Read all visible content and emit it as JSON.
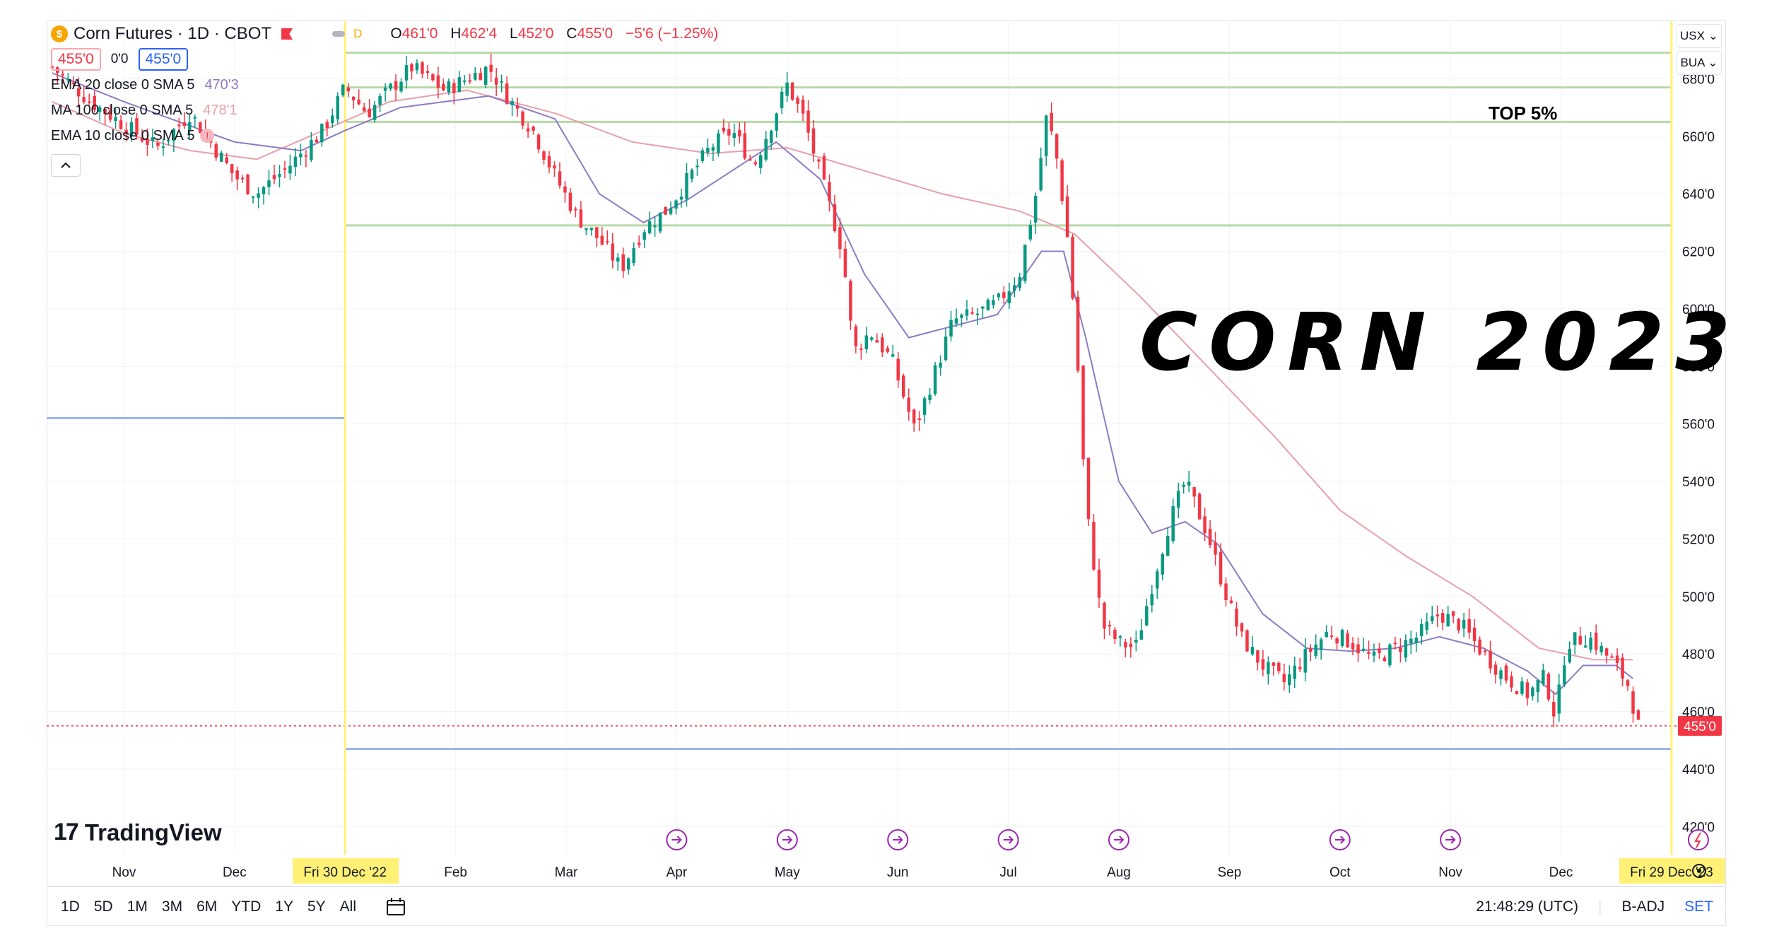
{
  "header": {
    "symbol_icon": "dollar-coin-icon",
    "title": "Corn Futures · 1D · CBOT",
    "d_badge": "D",
    "ohlc": [
      {
        "k": "O",
        "v": "461'0"
      },
      {
        "k": "H",
        "v": "462'4"
      },
      {
        "k": "L",
        "v": "452'0"
      },
      {
        "k": "C",
        "v": "455'0"
      }
    ],
    "change": "−5'6 (−1.25%)",
    "sell_price": "455'0",
    "spread": "0'0",
    "buy_price": "455'0"
  },
  "indicators": [
    {
      "label": "EMA 20 close 0 SMA 5",
      "value": "470'3",
      "color": "#8e7cc3"
    },
    {
      "label": "MA 100 close 0 SMA 5",
      "value": "478'1",
      "color": "#e8a0ab"
    },
    {
      "label": "EMA 10 close 0 SMA 5",
      "value": "",
      "color": "#ffffff"
    }
  ],
  "top_right": {
    "currency": "USX ⌄",
    "unit": "BUA ⌄"
  },
  "annotations": {
    "big_title": "CORN 2023",
    "top_label": "TOP 5%"
  },
  "logo_text": "TradingView",
  "bottom": {
    "ranges": [
      "1D",
      "5D",
      "1M",
      "3M",
      "6M",
      "YTD",
      "1Y",
      "5Y",
      "All"
    ],
    "time": "21:48:29 (UTC)",
    "adj": "B-ADJ",
    "set": "SET"
  },
  "colors": {
    "up": "#089981",
    "down": "#f23645",
    "ema20": "#8e7cc3",
    "ma100": "#e8a0ab",
    "zone": "#b7d9a8",
    "blue_line": "#9bb6f0",
    "marker": "#fff176"
  },
  "chart_data": {
    "type": "candlestick",
    "y_axis": {
      "range": [
        410,
        700
      ],
      "ticks": [
        "680'0",
        "660'0",
        "640'0",
        "620'0",
        "600'0",
        "580'0",
        "560'0",
        "540'0",
        "520'0",
        "500'0",
        "480'0",
        "460'0",
        "440'0",
        "420'0"
      ],
      "tick_values": [
        680,
        660,
        640,
        620,
        600,
        580,
        560,
        540,
        520,
        500,
        480,
        460,
        440,
        420
      ]
    },
    "x_axis": {
      "labels": [
        "Nov",
        "Dec",
        "Feb",
        "Mar",
        "Apr",
        "May",
        "Jun",
        "Jul",
        "Aug",
        "Sep",
        "Oct",
        "Nov",
        "Dec"
      ],
      "label_months": [
        1,
        2,
        4,
        5,
        6,
        7,
        8,
        9,
        10,
        11,
        12,
        13,
        14
      ],
      "range_months": [
        0.3,
        14.7
      ],
      "start_marker": {
        "label": "Fri 30 Dec '22",
        "month": 3
      },
      "end_marker": {
        "label": "Fri 29 Dec '23",
        "month": 15
      }
    },
    "last_price": {
      "label": "455'0",
      "value": 455
    },
    "horizontal_lines": [
      {
        "value": 689,
        "kind": "zone"
      },
      {
        "value": 677,
        "kind": "zone"
      },
      {
        "value": 665,
        "kind": "zone"
      },
      {
        "value": 629,
        "kind": "zone"
      },
      {
        "value": 562,
        "kind": "blue",
        "end": "start_marker"
      },
      {
        "value": 447,
        "kind": "blue",
        "start": "start_marker"
      }
    ],
    "events_months": [
      6,
      7,
      8,
      9,
      10,
      12,
      13
    ],
    "events_icon": "dividend-arrow-icon",
    "events_last_icon": "flash-icon",
    "price_path": [
      [
        0.35,
        684
      ],
      [
        0.7,
        672
      ],
      [
        1.0,
        664
      ],
      [
        1.3,
        656
      ],
      [
        1.6,
        668
      ],
      [
        2.0,
        646
      ],
      [
        2.2,
        640
      ],
      [
        2.5,
        650
      ],
      [
        2.8,
        662
      ],
      [
        3.0,
        677
      ],
      [
        3.2,
        668
      ],
      [
        3.4,
        676
      ],
      [
        3.6,
        684
      ],
      [
        3.9,
        676
      ],
      [
        4.1,
        680
      ],
      [
        4.3,
        684
      ],
      [
        4.5,
        672
      ],
      [
        4.7,
        662
      ],
      [
        4.9,
        646
      ],
      [
        5.1,
        632
      ],
      [
        5.3,
        624
      ],
      [
        5.5,
        614
      ],
      [
        5.7,
        628
      ],
      [
        5.9,
        634
      ],
      [
        6.1,
        645
      ],
      [
        6.3,
        656
      ],
      [
        6.5,
        662
      ],
      [
        6.7,
        650
      ],
      [
        6.85,
        664
      ],
      [
        7.0,
        678
      ],
      [
        7.15,
        666
      ],
      [
        7.35,
        640
      ],
      [
        7.5,
        620
      ],
      [
        7.6,
        585
      ],
      [
        7.75,
        592
      ],
      [
        7.95,
        582
      ],
      [
        8.15,
        558
      ],
      [
        8.3,
        574
      ],
      [
        8.5,
        596
      ],
      [
        8.7,
        598
      ],
      [
        8.9,
        602
      ],
      [
        9.1,
        612
      ],
      [
        9.25,
        640
      ],
      [
        9.35,
        668
      ],
      [
        9.45,
        650
      ],
      [
        9.55,
        620
      ],
      [
        9.62,
        585
      ],
      [
        9.7,
        532
      ],
      [
        9.85,
        490
      ],
      [
        10.0,
        484
      ],
      [
        10.15,
        482
      ],
      [
        10.3,
        504
      ],
      [
        10.45,
        525
      ],
      [
        10.6,
        540
      ],
      [
        10.8,
        522
      ],
      [
        10.95,
        503
      ],
      [
        11.1,
        486
      ],
      [
        11.3,
        476
      ],
      [
        11.5,
        470
      ],
      [
        11.7,
        480
      ],
      [
        11.9,
        488
      ],
      [
        12.1,
        484
      ],
      [
        12.3,
        478
      ],
      [
        12.5,
        482
      ],
      [
        12.7,
        486
      ],
      [
        12.9,
        494
      ],
      [
        13.1,
        490
      ],
      [
        13.3,
        480
      ],
      [
        13.5,
        472
      ],
      [
        13.7,
        466
      ],
      [
        13.85,
        472
      ],
      [
        13.95,
        458
      ],
      [
        14.05,
        484
      ],
      [
        14.25,
        486
      ],
      [
        14.45,
        478
      ],
      [
        14.6,
        470
      ],
      [
        14.7,
        455
      ]
    ],
    "ema20_path": [
      [
        0.35,
        682
      ],
      [
        1.0,
        672
      ],
      [
        2.0,
        658
      ],
      [
        2.6,
        655
      ],
      [
        3.0,
        662
      ],
      [
        3.5,
        670
      ],
      [
        4.3,
        674
      ],
      [
        4.9,
        666
      ],
      [
        5.3,
        640
      ],
      [
        5.7,
        630
      ],
      [
        6.1,
        638
      ],
      [
        6.5,
        648
      ],
      [
        6.9,
        658
      ],
      [
        7.3,
        645
      ],
      [
        7.7,
        612
      ],
      [
        8.1,
        590
      ],
      [
        8.5,
        594
      ],
      [
        8.9,
        598
      ],
      [
        9.3,
        620
      ],
      [
        9.5,
        620
      ],
      [
        9.7,
        590
      ],
      [
        10.0,
        540
      ],
      [
        10.3,
        522
      ],
      [
        10.6,
        526
      ],
      [
        10.9,
        518
      ],
      [
        11.3,
        494
      ],
      [
        11.7,
        482
      ],
      [
        12.1,
        481
      ],
      [
        12.5,
        482
      ],
      [
        12.9,
        486
      ],
      [
        13.3,
        482
      ],
      [
        13.7,
        474
      ],
      [
        13.95,
        466
      ],
      [
        14.2,
        476
      ],
      [
        14.5,
        476
      ],
      [
        14.7,
        470
      ]
    ],
    "ma100_path": [
      [
        0.35,
        672
      ],
      [
        1.0,
        661
      ],
      [
        1.6,
        655
      ],
      [
        2.2,
        652
      ],
      [
        2.8,
        662
      ],
      [
        3.4,
        672
      ],
      [
        4.1,
        676
      ],
      [
        4.9,
        668
      ],
      [
        5.6,
        658
      ],
      [
        6.3,
        654
      ],
      [
        7.0,
        656
      ],
      [
        7.7,
        648
      ],
      [
        8.4,
        640
      ],
      [
        9.1,
        634
      ],
      [
        9.6,
        626
      ],
      [
        10.2,
        604
      ],
      [
        10.8,
        580
      ],
      [
        11.4,
        556
      ],
      [
        12.0,
        530
      ],
      [
        12.6,
        514
      ],
      [
        13.2,
        500
      ],
      [
        13.8,
        482
      ],
      [
        14.3,
        478
      ],
      [
        14.7,
        478
      ]
    ]
  }
}
